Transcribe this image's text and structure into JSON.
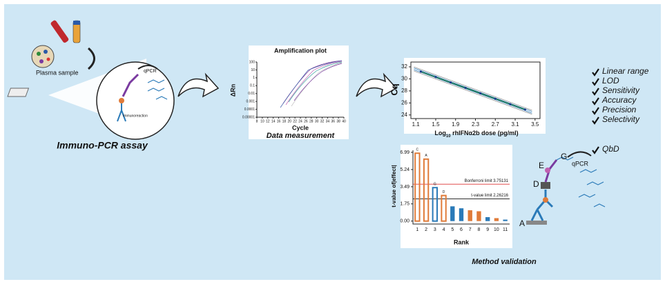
{
  "assay": {
    "title": "Immuno-PCR assay",
    "plasma_label": "Plasma sample",
    "qpcr_label": "qPCR",
    "immuno_label": "Immunoreaction"
  },
  "amplification_plot": {
    "title": "Amplification plot",
    "y_label": "ΔRn",
    "x_label": "Cycle",
    "caption": "Data measurement",
    "log_y": true,
    "ylim": [
      1e-05,
      100
    ],
    "yticks": [
      100,
      10,
      1,
      0.1,
      0.01,
      0.001,
      0.0001,
      1e-05
    ],
    "xlim": [
      8,
      40
    ],
    "xticks": [
      8,
      10,
      12,
      14,
      16,
      18,
      20,
      22,
      24,
      26,
      28,
      30,
      32,
      34,
      36,
      38,
      40
    ]
  },
  "standard_curve": {
    "y_label": "Cq",
    "x_label_parts": [
      "Log",
      "10",
      " rhIFNα2b dose (pg/ml)"
    ],
    "x": [
      1.2,
      1.5,
      1.8,
      2.1,
      2.4,
      2.7,
      3.0,
      3.3
    ],
    "values": [
      31.2,
      30.3,
      29.4,
      28.5,
      27.6,
      26.7,
      25.8,
      24.9
    ],
    "xlim": [
      1.0,
      3.6
    ],
    "ylim": [
      23.4,
      32.8
    ],
    "xticks": [
      1.1,
      1.5,
      1.9,
      2.3,
      2.7,
      3.1,
      3.5
    ],
    "yticks": [
      24,
      26,
      28,
      30,
      32
    ],
    "color": "#1f7a4d"
  },
  "checklist": {
    "items": [
      "Linear range",
      "LOD",
      "Sensitivity",
      "Accuracy",
      "Precision",
      "Selectivity"
    ],
    "qbd": "QbD"
  },
  "pareto": {
    "y_label": "t-value of|effect|",
    "x_label": "Rank",
    "caption": "Method validation",
    "categories": [
      1,
      2,
      3,
      4,
      5,
      6,
      7,
      8,
      9,
      10,
      11
    ],
    "values": [
      6.9,
      6.3,
      3.4,
      2.6,
      1.5,
      1.3,
      1.1,
      1.0,
      0.4,
      0.3,
      0.15
    ],
    "factor_labels": [
      "C",
      "A",
      "G",
      "D",
      null,
      null,
      null,
      null,
      null,
      null,
      null
    ],
    "colors": [
      "#e07b39",
      "#e07b39",
      "#2a7ab8",
      "#e07b39",
      "#2a7ab8",
      "#2a7ab8",
      "#e07b39",
      "#e07b39",
      "#2a7ab8",
      "#e07b39",
      "#2a7ab8"
    ],
    "filled": [
      false,
      false,
      false,
      false,
      true,
      true,
      true,
      true,
      true,
      true,
      true
    ],
    "ylim": [
      -0.3,
      7.2
    ],
    "yticks": [
      {
        "value": 0,
        "label": "0.00"
      },
      1.75,
      3.49,
      5.24,
      6.99
    ],
    "bonferroni": {
      "value": 3.75131,
      "label": "Bonferroni limit 3.75131"
    },
    "t_limit": {
      "value": 2.26216,
      "label": "t-value limit 2.26216"
    }
  },
  "mechanism": {
    "labels": [
      "A",
      "D",
      "E",
      "G"
    ],
    "qpcr": "qPCR"
  }
}
